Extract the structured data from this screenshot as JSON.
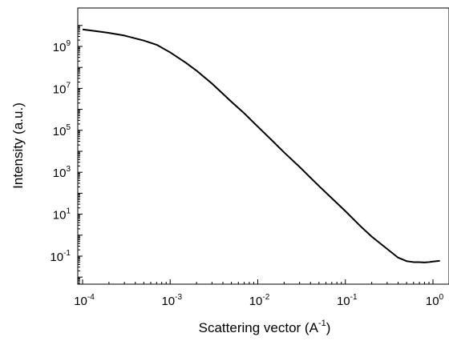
{
  "chart_data": {
    "type": "line",
    "title": "",
    "xlabel": "Scattering vector (A",
    "xlabel_sup": "-1",
    "xlabel_end": ")",
    "ylabel": "Intensity (a.u.)",
    "xscale": "log",
    "yscale": "log",
    "xlim": [
      0.0001,
      1.3
    ],
    "ylim": [
      0.005,
      100000000000.0
    ],
    "grid": false,
    "x_ticks": [
      {
        "base": "10",
        "exp": "-4",
        "value": 0.0001
      },
      {
        "base": "10",
        "exp": "-3",
        "value": 0.001
      },
      {
        "base": "10",
        "exp": "-2",
        "value": 0.01
      },
      {
        "base": "10",
        "exp": "-1",
        "value": 0.1
      },
      {
        "base": "10",
        "exp": "0",
        "value": 1
      }
    ],
    "y_ticks": [
      {
        "base": "10",
        "exp": "9",
        "value": 1000000000.0
      },
      {
        "base": "10",
        "exp": "7",
        "value": 10000000.0
      },
      {
        "base": "10",
        "exp": "5",
        "value": 100000.0
      },
      {
        "base": "10",
        "exp": "3",
        "value": 1000.0
      },
      {
        "base": "10",
        "exp": "1",
        "value": 10
      },
      {
        "base": "10",
        "exp": "-1",
        "value": 0.1
      }
    ],
    "series": [
      {
        "color": "#000000",
        "x": [
          0.0001,
          0.00015,
          0.0002,
          0.0003,
          0.0005,
          0.0007,
          0.001,
          0.0015,
          0.002,
          0.003,
          0.005,
          0.007,
          0.01,
          0.015,
          0.02,
          0.03,
          0.05,
          0.07,
          0.1,
          0.15,
          0.2,
          0.3,
          0.4,
          0.5,
          0.6,
          0.7,
          0.8,
          0.9,
          1.0,
          1.2
        ],
        "y": [
          6500000000.0,
          5200000000.0,
          4400000000.0,
          3300000000.0,
          1900000000.0,
          1200000000.0,
          520000000.0,
          170000000.0,
          70000000.0,
          17000000.0,
          2300000.0,
          650000.0,
          150000.0,
          29000.0,
          8800.0,
          1800.0,
          220.0,
          58,
          14,
          2.6,
          0.85,
          0.22,
          0.085,
          0.058,
          0.052,
          0.052,
          0.05,
          0.052,
          0.055,
          0.06
        ]
      }
    ]
  }
}
